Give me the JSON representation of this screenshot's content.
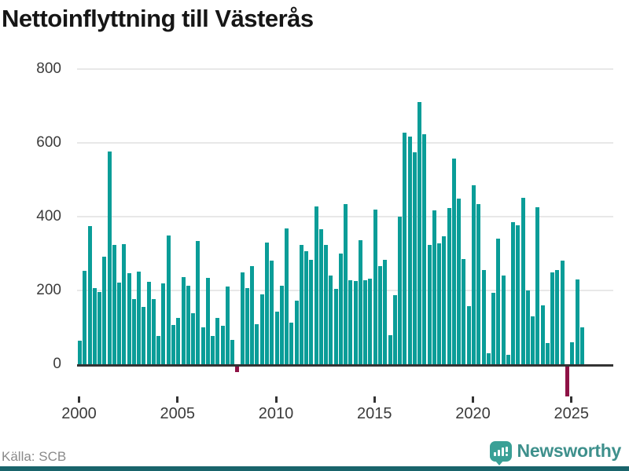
{
  "title": "Nettoinflyttning till Västerås",
  "source": "Källa: SCB",
  "brand": {
    "name": "Newsworthy",
    "logo_icon": "bar-chart-speech-bubble-icon"
  },
  "colors": {
    "bar_positive": "#0a9d98",
    "bar_negative": "#8e1245",
    "axis_line": "#333333",
    "gridline": "#e8e8e8",
    "tick": "#333333",
    "text": "#3b3b3b",
    "muted_text": "#8a8a8a",
    "brand_logo": "#3aa096",
    "brand_text": "#3e908c",
    "bottom_strip": "#19646b"
  },
  "chart_data": {
    "type": "bar",
    "title": "Nettoinflyttning till Västerås",
    "xlabel": "",
    "ylabel": "",
    "period": "quarterly",
    "start_period": "2000 Q1",
    "end_period": "2025 Q3",
    "yticks": [
      800,
      600,
      400,
      200,
      0
    ],
    "xticks": [
      2000,
      2005,
      2010,
      2015,
      2020,
      2025
    ],
    "ylim": [
      -100,
      800
    ],
    "grid": true,
    "source": "Källa: SCB",
    "values": [
      64,
      253,
      375,
      207,
      196,
      291,
      577,
      324,
      222,
      325,
      247,
      177,
      252,
      155,
      224,
      177,
      76,
      220,
      350,
      107,
      126,
      237,
      212,
      139,
      335,
      99,
      234,
      76,
      125,
      105,
      210,
      66,
      -15,
      250,
      207,
      265,
      108,
      190,
      330,
      280,
      142,
      212,
      369,
      112,
      173,
      323,
      306,
      284,
      427,
      365,
      323,
      240,
      205,
      301,
      433,
      228,
      226,
      337,
      227,
      232,
      420,
      266,
      284,
      78,
      188,
      399,
      627,
      616,
      575,
      710,
      624,
      324,
      416,
      328,
      346,
      423,
      557,
      450,
      285,
      157,
      485,
      435,
      256,
      30,
      193,
      340,
      240,
      25,
      386,
      377,
      452,
      200,
      130,
      425,
      160,
      57,
      249,
      255,
      280,
      -80,
      60,
      230,
      100
    ]
  }
}
